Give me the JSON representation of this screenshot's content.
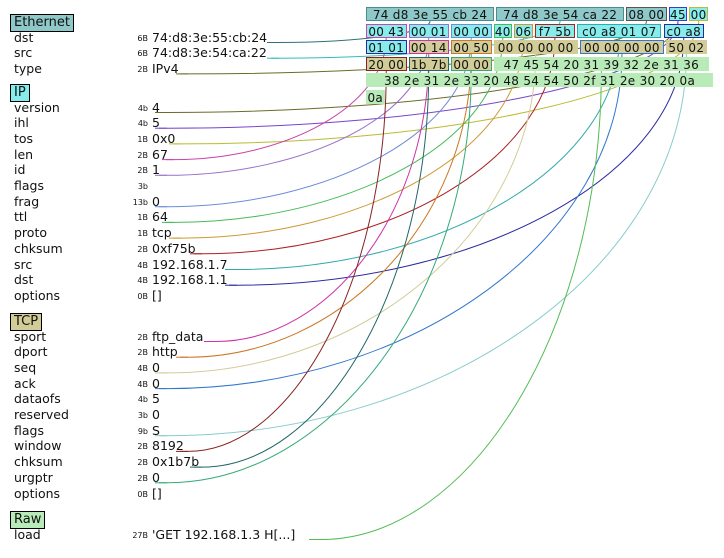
{
  "layers": [
    {
      "name": "Ethernet",
      "color": "#8ec8c8",
      "fields": [
        {
          "name": "dst",
          "size": "6B",
          "value": "74:d8:3e:55:cb:24"
        },
        {
          "name": "src",
          "size": "6B",
          "value": "74:d8:3e:54:ca:22"
        },
        {
          "name": "type",
          "size": "2B",
          "value": "IPv4"
        }
      ]
    },
    {
      "name": "IP",
      "color": "#86ecec",
      "fields": [
        {
          "name": "version",
          "size": "4b",
          "value": "4"
        },
        {
          "name": "ihl",
          "size": "4b",
          "value": "5"
        },
        {
          "name": "tos",
          "size": "1B",
          "value": "0x0"
        },
        {
          "name": "len",
          "size": "2B",
          "value": "67"
        },
        {
          "name": "id",
          "size": "2B",
          "value": "1"
        },
        {
          "name": "flags",
          "size": "3b",
          "value": ""
        },
        {
          "name": "frag",
          "size": "13b",
          "value": "0"
        },
        {
          "name": "ttl",
          "size": "1B",
          "value": "64"
        },
        {
          "name": "proto",
          "size": "1B",
          "value": "tcp"
        },
        {
          "name": "chksum",
          "size": "2B",
          "value": "0xf75b"
        },
        {
          "name": "src",
          "size": "4B",
          "value": "192.168.1.7"
        },
        {
          "name": "dst",
          "size": "4B",
          "value": "192.168.1.1"
        },
        {
          "name": "options",
          "size": "0B",
          "value": "[]"
        }
      ]
    },
    {
      "name": "TCP",
      "color": "#d2cc98",
      "fields": [
        {
          "name": "sport",
          "size": "2B",
          "value": "ftp_data"
        },
        {
          "name": "dport",
          "size": "2B",
          "value": "http"
        },
        {
          "name": "seq",
          "size": "4B",
          "value": "0"
        },
        {
          "name": "ack",
          "size": "4B",
          "value": "0"
        },
        {
          "name": "dataofs",
          "size": "4b",
          "value": "5"
        },
        {
          "name": "reserved",
          "size": "3b",
          "value": "0"
        },
        {
          "name": "flags",
          "size": "9b",
          "value": "S"
        },
        {
          "name": "window",
          "size": "2B",
          "value": "8192"
        },
        {
          "name": "chksum",
          "size": "2B",
          "value": "0x1b7b"
        },
        {
          "name": "urgptr",
          "size": "2B",
          "value": "0"
        },
        {
          "name": "options",
          "size": "0B",
          "value": "[]"
        }
      ]
    },
    {
      "name": "Raw",
      "color": "#b9ebb9",
      "fields": [
        {
          "name": "load",
          "size": "27B",
          "value": "'GET 192.168.1.3 H[...]"
        }
      ]
    }
  ],
  "hex_rows": [
    [
      {
        "text": "74 d8 3e 55 cb 24",
        "fill": "#8ec8c8",
        "border": "#4b8c8c"
      },
      {
        "text": "74 d8 3e 54 ca 22",
        "fill": "#8ec8c8",
        "border": "#4b8c8c"
      },
      {
        "text": "08 00",
        "fill": "#8ec8c8",
        "border": "#555555"
      },
      {
        "text": "45",
        "fill": "#86ecec",
        "border": "#3a3ad0"
      },
      {
        "text": "00",
        "fill": "#86ecec",
        "border": "#bcbc30"
      }
    ],
    [
      {
        "text": "00 43",
        "fill": "#86ecec",
        "border": "#cc44aa"
      },
      {
        "text": "00 01",
        "fill": "#86ecec",
        "border": "#9a6fc8"
      },
      {
        "text": "00 00",
        "fill": "#86ecec",
        "border": "#6c8cd8"
      },
      {
        "text": "40",
        "fill": "#86ecec",
        "border": "#44bb55"
      },
      {
        "text": "06",
        "fill": "#86ecec",
        "border": "#cc9933"
      },
      {
        "text": "f7 5b",
        "fill": "#86ecec",
        "border": "#aa2222"
      },
      {
        "text": "c0 a8 01 07",
        "fill": "#86ecec",
        "border": "#33aaaa"
      },
      {
        "text": "c0 a8",
        "fill": "#86ecec",
        "border": "#2a2aa0"
      }
    ],
    [
      {
        "text": "01 01",
        "fill": "#86ecec",
        "border": "#2a2aa0"
      },
      {
        "text": "00 14",
        "fill": "#d2cc98",
        "border": "#cc33aa"
      },
      {
        "text": "00 50",
        "fill": "#d2cc98",
        "border": "#cc7722"
      },
      {
        "text": "00 00 00 00",
        "fill": "#d2cc98",
        "border": "#d2cc98"
      },
      {
        "text": "00 00 00 00",
        "fill": "#d2cc98",
        "border": "#3377cc"
      },
      {
        "text": "50 02",
        "fill": "#d2cc98",
        "border": "#d2cc98"
      }
    ],
    [
      {
        "text": "20 00",
        "fill": "#d2cc98",
        "border": "#882222"
      },
      {
        "text": "1b 7b",
        "fill": "#d2cc98",
        "border": "#226666"
      },
      {
        "text": "00 00",
        "fill": "#d2cc98",
        "border": "#33aa77"
      },
      {
        "text": "47 45 54 20 31 39 32 2e 31 36",
        "fill": "#b9ebb9",
        "border": "#b9ebb9"
      }
    ],
    [
      {
        "text": "38 2e 31 2e 33 20 48 54 54 50 2f 31 2e 30 20 0a",
        "fill": "#b9ebb9",
        "border": "#b9ebb9"
      }
    ],
    [
      {
        "text": "0a",
        "fill": "#b9ebb9",
        "border": "#b9ebb9"
      }
    ]
  ],
  "links": [
    {
      "field": "Ethernet.dst",
      "to": "0.0",
      "color": "#2f6f7a"
    },
    {
      "field": "Ethernet.src",
      "to": "0.1",
      "color": "#33bbbb"
    },
    {
      "field": "Ethernet.type",
      "to": "0.2",
      "color": "#6b6b2b"
    },
    {
      "field": "IP.version",
      "to": "0.3",
      "color": "#6b6b2b"
    },
    {
      "field": "IP.ihl",
      "to": "0.3",
      "color": "#7744cc"
    },
    {
      "field": "IP.tos",
      "to": "0.4",
      "color": "#bbbb33"
    },
    {
      "field": "IP.len",
      "to": "1.0",
      "color": "#cc44aa"
    },
    {
      "field": "IP.id",
      "to": "1.1",
      "color": "#9a6fc8"
    },
    {
      "field": "IP.frag",
      "to": "1.2",
      "color": "#6c8cd8"
    },
    {
      "field": "IP.ttl",
      "to": "1.3",
      "color": "#44bb55"
    },
    {
      "field": "IP.proto",
      "to": "1.4",
      "color": "#cc9933"
    },
    {
      "field": "IP.chksum",
      "to": "1.5",
      "color": "#aa2222"
    },
    {
      "field": "IP.src",
      "to": "1.6",
      "color": "#33aaaa"
    },
    {
      "field": "IP.dst",
      "to": "1.7",
      "color": "#2a2aa0"
    },
    {
      "field": "TCP.sport",
      "to": "2.1",
      "color": "#cc33aa"
    },
    {
      "field": "TCP.dport",
      "to": "2.2",
      "color": "#cc7722"
    },
    {
      "field": "TCP.seq",
      "to": "2.3",
      "color": "#d2cc98"
    },
    {
      "field": "TCP.ack",
      "to": "2.4",
      "color": "#3377cc"
    },
    {
      "field": "TCP.flags",
      "to": "2.5",
      "color": "#88cccc"
    },
    {
      "field": "TCP.window",
      "to": "3.0",
      "color": "#882222"
    },
    {
      "field": "TCP.chksum",
      "to": "3.1",
      "color": "#226666"
    },
    {
      "field": "TCP.urgptr",
      "to": "3.2",
      "color": "#33aa77"
    },
    {
      "field": "Raw.load",
      "to": "3.3",
      "color": "#55bb55"
    }
  ]
}
